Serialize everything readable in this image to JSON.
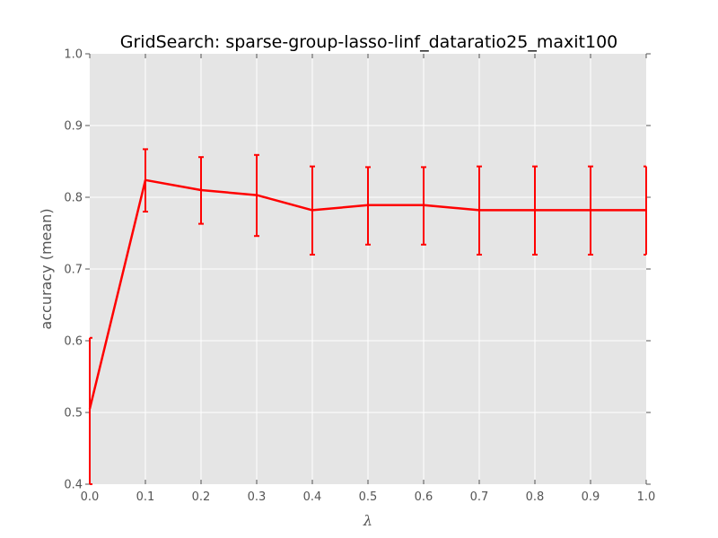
{
  "chart_data": {
    "type": "line",
    "title": "GridSearch: sparse-group-lasso-linf_dataratio25_maxit100",
    "xlabel": "λ",
    "ylabel": "accuracy (mean)",
    "xlim": [
      0.0,
      1.0
    ],
    "ylim": [
      0.4,
      1.0
    ],
    "x_ticks": [
      "0.0",
      "0.1",
      "0.2",
      "0.3",
      "0.4",
      "0.5",
      "0.6",
      "0.7",
      "0.8",
      "0.9",
      "1.0"
    ],
    "y_ticks": [
      "0.4",
      "0.5",
      "0.6",
      "0.7",
      "0.8",
      "0.9",
      "1.0"
    ],
    "grid": true,
    "background": "#e5e5e5",
    "series": [
      {
        "color": "#ff0000",
        "x": [
          0.0,
          0.1,
          0.2,
          0.3,
          0.4,
          0.5,
          0.6,
          0.7,
          0.8,
          0.9,
          1.0
        ],
        "y": [
          0.505,
          0.824,
          0.81,
          0.803,
          0.782,
          0.789,
          0.789,
          0.782,
          0.782,
          0.782,
          0.782
        ],
        "err_low": [
          0.4,
          0.78,
          0.763,
          0.746,
          0.72,
          0.734,
          0.734,
          0.72,
          0.72,
          0.72,
          0.72
        ],
        "err_high": [
          0.604,
          0.867,
          0.856,
          0.859,
          0.843,
          0.842,
          0.842,
          0.843,
          0.843,
          0.843,
          0.843
        ]
      }
    ]
  }
}
